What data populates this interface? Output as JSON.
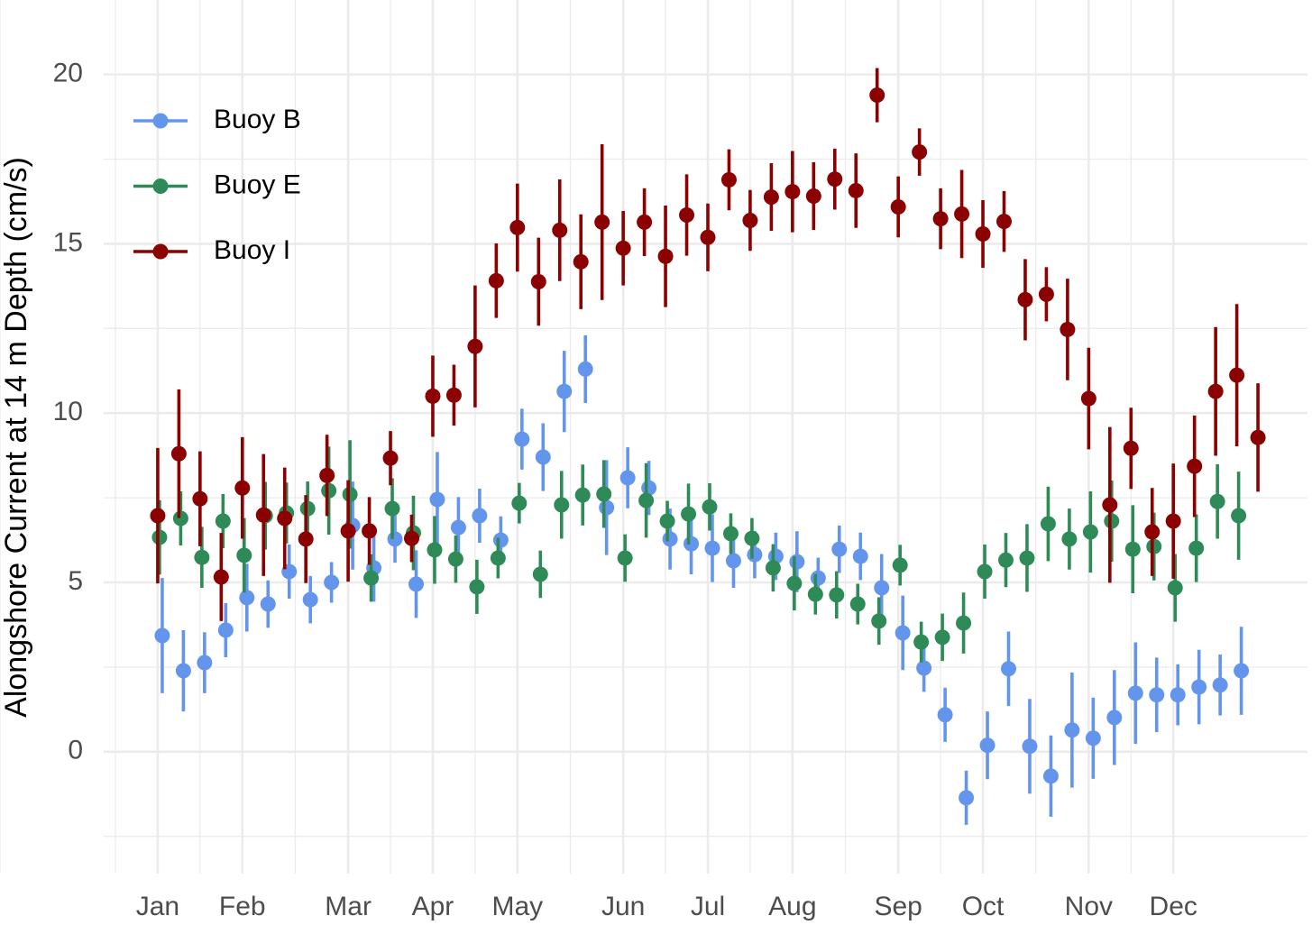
{
  "chart_data": {
    "type": "scatter",
    "y_label": "Alongshore Current at 14 m Depth (cm/s)",
    "x": [
      1,
      2,
      3,
      4,
      5,
      6,
      7,
      8,
      9,
      10,
      11,
      12,
      13,
      14,
      15,
      16,
      17,
      18,
      19,
      20,
      21,
      22,
      23,
      24,
      25,
      26,
      27,
      28,
      29,
      30,
      31,
      32,
      33,
      34,
      35,
      36,
      37,
      38,
      39,
      40,
      41,
      42,
      43,
      44,
      45,
      46,
      47,
      48,
      49,
      50,
      51,
      52,
      53
    ],
    "xlim": [
      -1,
      55
    ],
    "xticks": [
      {
        "value": 1,
        "label": "Jan"
      },
      {
        "value": 5,
        "label": "Feb"
      },
      {
        "value": 10,
        "label": "Mar"
      },
      {
        "value": 14,
        "label": "Apr"
      },
      {
        "value": 18,
        "label": "May"
      },
      {
        "value": 23,
        "label": "Jun"
      },
      {
        "value": 27,
        "label": "Jul"
      },
      {
        "value": 31,
        "label": "Aug"
      },
      {
        "value": 36,
        "label": "Sep"
      },
      {
        "value": 40,
        "label": "Oct"
      },
      {
        "value": 45,
        "label": "Nov"
      },
      {
        "value": 49,
        "label": "Dec"
      }
    ],
    "ylim": [
      -3.6,
      22.2
    ],
    "yticks": [
      0,
      5,
      10,
      15,
      20
    ],
    "grid": true,
    "legend": "top-left",
    "series": [
      {
        "name": "Buoy B",
        "color": "#6495ED",
        "values": [
          3.43,
          2.39,
          2.63,
          3.59,
          4.55,
          4.36,
          5.32,
          4.49,
          5.0,
          6.68,
          5.43,
          6.28,
          4.95,
          7.45,
          6.62,
          6.97,
          6.25,
          9.23,
          8.7,
          10.64,
          11.3,
          7.21,
          8.09,
          7.79,
          6.28,
          6.14,
          6.01,
          5.64,
          5.82,
          5.77,
          5.61,
          5.13,
          5.98,
          5.77,
          4.84,
          3.51,
          2.47,
          1.09,
          -1.36,
          0.19,
          2.45,
          0.16,
          -0.72,
          0.64,
          0.4,
          1.01,
          1.73,
          1.68,
          1.68,
          1.91,
          1.97,
          2.39,
          null
        ],
        "errors": [
          1.7,
          1.2,
          0.9,
          0.8,
          1.0,
          0.7,
          0.8,
          0.7,
          0.6,
          1.3,
          1.0,
          0.7,
          1.0,
          1.4,
          0.9,
          0.8,
          0.7,
          0.9,
          1.0,
          1.2,
          1.0,
          1.4,
          0.9,
          0.8,
          0.9,
          0.9,
          1.0,
          0.8,
          0.7,
          0.7,
          0.9,
          0.6,
          0.7,
          0.7,
          1.0,
          1.1,
          0.7,
          0.8,
          0.8,
          1.0,
          1.1,
          1.4,
          1.2,
          1.7,
          1.2,
          1.4,
          1.5,
          1.1,
          0.9,
          1.1,
          0.9,
          1.3,
          null
        ]
      },
      {
        "name": "Buoy E",
        "color": "#2E8B57",
        "values": [
          6.33,
          6.89,
          5.74,
          6.81,
          5.8,
          6.97,
          7.05,
          7.18,
          7.71,
          7.6,
          5.13,
          7.18,
          6.46,
          5.96,
          5.69,
          4.87,
          5.72,
          7.34,
          5.24,
          7.29,
          7.58,
          7.61,
          5.72,
          7.42,
          6.81,
          7.02,
          7.23,
          6.44,
          6.3,
          5.43,
          4.97,
          4.65,
          4.63,
          4.36,
          3.86,
          5.51,
          3.24,
          3.38,
          3.8,
          5.32,
          5.66,
          5.72,
          6.73,
          6.28,
          6.49,
          6.81,
          5.98,
          6.06,
          4.84,
          6.01,
          7.39,
          6.97,
          null
        ],
        "errors": [
          1.1,
          0.8,
          0.9,
          0.8,
          1.1,
          1.0,
          0.9,
          0.8,
          1.3,
          1.6,
          0.7,
          0.9,
          1.1,
          1.0,
          0.7,
          0.8,
          0.6,
          0.6,
          0.7,
          1.0,
          0.9,
          1.0,
          0.7,
          1.1,
          0.6,
          0.9,
          0.7,
          0.6,
          0.6,
          0.7,
          0.8,
          0.6,
          0.7,
          0.6,
          0.7,
          0.6,
          0.6,
          0.7,
          0.9,
          0.8,
          0.8,
          1.0,
          1.1,
          0.9,
          1.2,
          1.2,
          1.3,
          1.0,
          1.0,
          1.0,
          1.1,
          1.3,
          null
        ]
      },
      {
        "name": "Buoy I",
        "color": "#8B0000",
        "values": [
          6.97,
          8.8,
          7.47,
          5.16,
          7.79,
          6.99,
          6.89,
          6.28,
          8.16,
          6.52,
          6.52,
          8.67,
          6.3,
          10.5,
          10.53,
          11.97,
          13.91,
          15.48,
          13.88,
          15.4,
          14.47,
          15.64,
          14.87,
          15.64,
          14.63,
          15.85,
          15.19,
          16.89,
          15.69,
          16.38,
          16.54,
          16.41,
          16.91,
          16.57,
          19.39,
          16.09,
          17.71,
          15.74,
          15.88,
          15.29,
          15.66,
          13.35,
          13.51,
          12.47,
          10.43,
          7.29,
          8.96,
          6.49,
          6.81,
          8.43,
          10.64,
          11.12,
          9.28
        ],
        "errors": [
          2.0,
          1.9,
          1.4,
          1.3,
          1.5,
          1.8,
          1.5,
          1.3,
          1.2,
          1.5,
          1.0,
          0.8,
          0.7,
          1.2,
          0.9,
          1.8,
          1.1,
          1.3,
          1.3,
          1.5,
          1.4,
          2.3,
          1.1,
          1.0,
          1.5,
          1.2,
          1.0,
          0.9,
          0.9,
          1.0,
          1.2,
          1.0,
          0.9,
          1.1,
          0.8,
          0.9,
          0.7,
          0.9,
          1.3,
          1.0,
          0.9,
          1.2,
          0.8,
          1.5,
          1.5,
          2.3,
          1.2,
          1.3,
          1.7,
          1.5,
          1.9,
          2.1,
          1.6
        ]
      }
    ]
  }
}
